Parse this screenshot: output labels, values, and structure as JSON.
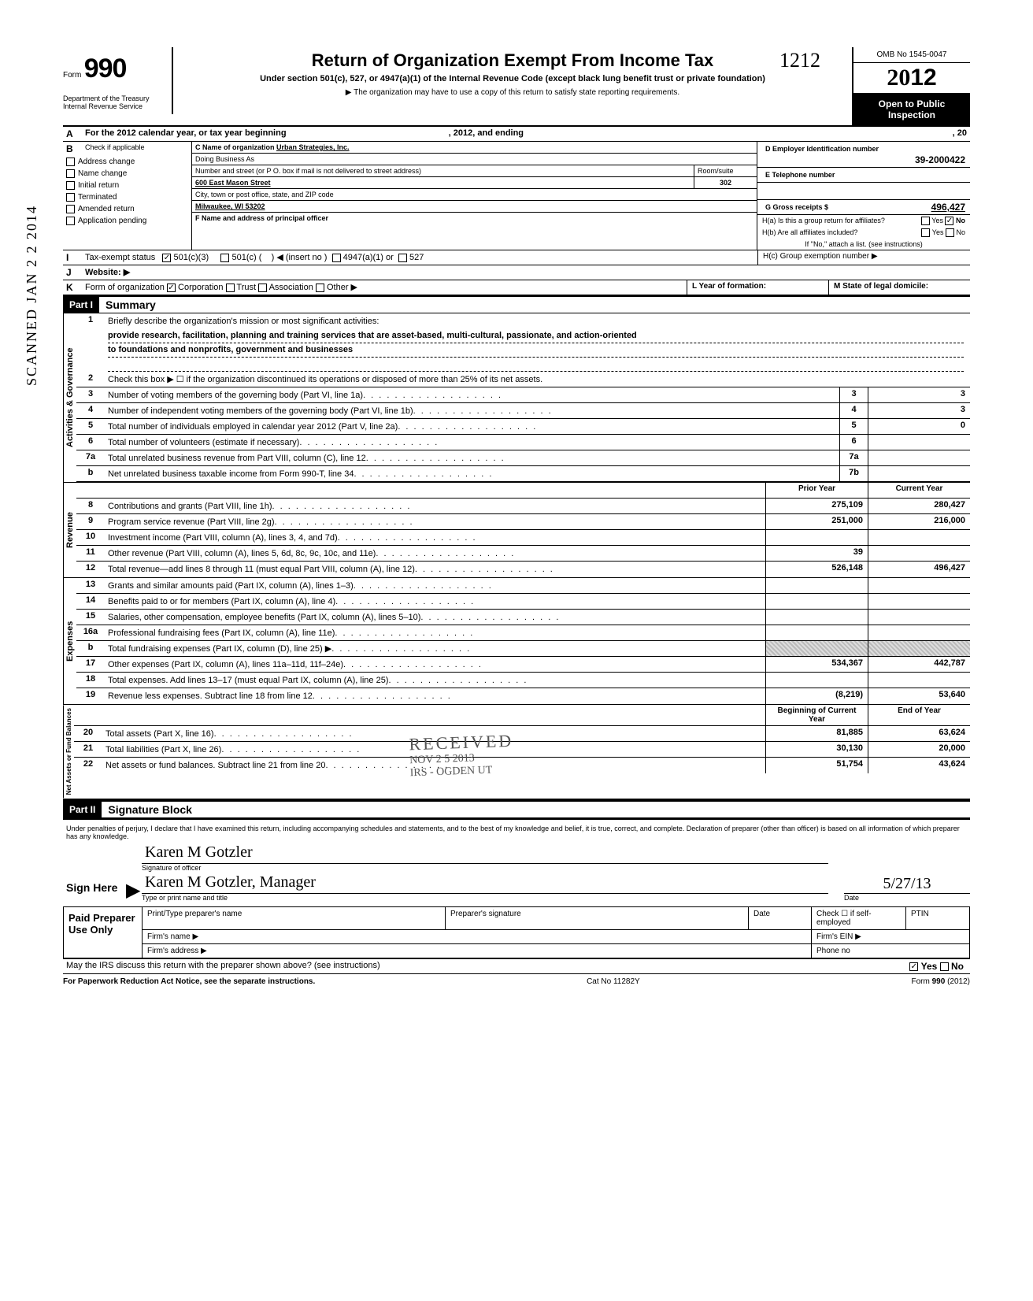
{
  "meta": {
    "form_number_prefix": "Form",
    "form_number": "990",
    "department": "Department of the Treasury",
    "irs": "Internal Revenue Service",
    "omb": "OMB No 1545-0047",
    "year_display": "2012",
    "open_public_1": "Open to Public",
    "open_public_2": "Inspection",
    "main_title": "Return of Organization Exempt From Income Tax",
    "sub_title": "Under section 501(c), 527, or 4947(a)(1) of the Internal Revenue Code (except black lung benefit trust or private foundation)",
    "arrow_note": "▶ The organization may have to use a copy of this return to satisfy state reporting requirements.",
    "scanned": "SCANNED JAN 2 2 2014",
    "hand_1212": "1212"
  },
  "lineA": {
    "label": "For the 2012 calendar year, or tax year beginning",
    "mid": ", 2012, and ending",
    "end": ", 20"
  },
  "lineB": {
    "label": "Check if applicable",
    "opts": [
      "Address change",
      "Name change",
      "Initial return",
      "Terminated",
      "Amended return",
      "Application pending"
    ]
  },
  "blockC": {
    "c_label": "C Name of organization",
    "org": "Urban Strategies, Inc.",
    "dba": "Doing Business As",
    "addr_label": "Number and street (or P O. box if mail is not delivered to street address)",
    "room_label": "Room/suite",
    "street": "600 East Mason Street",
    "room": "302",
    "city_label": "City, town or post office, state, and ZIP code",
    "city": "Milwaukee, WI  53202",
    "f_label": "F Name and address of principal officer"
  },
  "blockD": {
    "label": "D Employer Identification number",
    "value": "39-2000422"
  },
  "blockE": {
    "label": "E Telephone number"
  },
  "blockG": {
    "label": "G Gross receipts $",
    "value": "496,427"
  },
  "blockH": {
    "ha": "H(a) Is this a group return for affiliates?",
    "hb": "H(b) Are all affiliates included?",
    "hb_note": "If \"No,\" attach a list. (see instructions)",
    "hc": "H(c) Group exemption number ▶",
    "yes": "Yes",
    "no": "No"
  },
  "lineI": {
    "label": "Tax-exempt status",
    "opt1": "501(c)(3)",
    "opt2": "501(c) (",
    "opt2b": ") ◀ (insert no )",
    "opt3": "4947(a)(1) or",
    "opt4": "527"
  },
  "lineJ": {
    "label": "Website: ▶"
  },
  "lineK": {
    "label": "Form of organization",
    "opts": [
      "Corporation",
      "Trust",
      "Association",
      "Other ▶"
    ],
    "l_label": "L Year of formation:",
    "m_label": "M State of legal domicile:"
  },
  "part1": {
    "header": "Part I",
    "title": "Summary",
    "vert_ag": "Activities & Governance",
    "vert_rev": "Revenue",
    "vert_exp": "Expenses",
    "vert_net": "Net Assets or Fund Balances",
    "line1": "Briefly describe the organization's mission or most significant activities:",
    "mission1": "provide research, facilitation, planning and training services that are asset-based, multi-cultural, passionate, and action-oriented",
    "mission2": "to foundations and nonprofits, government and businesses",
    "line2": "Check this box ▶ ☐ if the organization discontinued its operations or disposed of more than 25% of its net assets.",
    "rows_ag": [
      {
        "n": "3",
        "d": "Number of voting members of the governing body (Part VI, line 1a)",
        "b": "3",
        "v": "3"
      },
      {
        "n": "4",
        "d": "Number of independent voting members of the governing body (Part VI, line 1b)",
        "b": "4",
        "v": "3"
      },
      {
        "n": "5",
        "d": "Total number of individuals employed in calendar year 2012 (Part V, line 2a)",
        "b": "5",
        "v": "0"
      },
      {
        "n": "6",
        "d": "Total number of volunteers (estimate if necessary)",
        "b": "6",
        "v": ""
      },
      {
        "n": "7a",
        "d": "Total unrelated business revenue from Part VIII, column (C), line 12",
        "b": "7a",
        "v": ""
      },
      {
        "n": "b",
        "d": "Net unrelated business taxable income from Form 990-T, line 34",
        "b": "7b",
        "v": ""
      }
    ],
    "col_py": "Prior Year",
    "col_cy": "Current Year",
    "rows_rev": [
      {
        "n": "8",
        "d": "Contributions and grants (Part VIII, line 1h)",
        "py": "275,109",
        "cy": "280,427"
      },
      {
        "n": "9",
        "d": "Program service revenue (Part VIII, line 2g)",
        "py": "251,000",
        "cy": "216,000"
      },
      {
        "n": "10",
        "d": "Investment income (Part VIII, column (A), lines 3, 4, and 7d)",
        "py": "",
        "cy": ""
      },
      {
        "n": "11",
        "d": "Other revenue (Part VIII, column (A), lines 5, 6d, 8c, 9c, 10c, and 11e)",
        "py": "39",
        "cy": ""
      },
      {
        "n": "12",
        "d": "Total revenue—add lines 8 through 11 (must equal Part VIII, column (A), line 12)",
        "py": "526,148",
        "cy": "496,427"
      }
    ],
    "rows_exp": [
      {
        "n": "13",
        "d": "Grants and similar amounts paid (Part IX, column (A), lines 1–3)",
        "py": "",
        "cy": ""
      },
      {
        "n": "14",
        "d": "Benefits paid to or for members (Part IX, column (A), line 4)",
        "py": "",
        "cy": ""
      },
      {
        "n": "15",
        "d": "Salaries, other compensation, employee benefits (Part IX, column (A), lines 5–10)",
        "py": "",
        "cy": ""
      },
      {
        "n": "16a",
        "d": "Professional fundraising fees (Part IX, column (A), line 11e)",
        "py": "",
        "cy": ""
      },
      {
        "n": "b",
        "d": "Total fundraising expenses (Part IX, column (D), line 25) ▶",
        "py": "shaded",
        "cy": "shaded"
      },
      {
        "n": "17",
        "d": "Other expenses (Part IX, column (A), lines 11a–11d, 11f–24e)",
        "py": "534,367",
        "cy": "442,787"
      },
      {
        "n": "18",
        "d": "Total expenses. Add lines 13–17 (must equal Part IX, column (A), line 25)",
        "py": "",
        "cy": ""
      },
      {
        "n": "19",
        "d": "Revenue less expenses. Subtract line 18 from line 12",
        "py": "(8,219)",
        "cy": "53,640"
      }
    ],
    "col_boy": "Beginning of Current Year",
    "col_eoy": "End of Year",
    "rows_net": [
      {
        "n": "20",
        "d": "Total assets (Part X, line 16)",
        "py": "81,885",
        "cy": "63,624"
      },
      {
        "n": "21",
        "d": "Total liabilities (Part X, line 26)",
        "py": "30,130",
        "cy": "20,000"
      },
      {
        "n": "22",
        "d": "Net assets or fund balances. Subtract line 21 from line 20",
        "py": "51,754",
        "cy": "43,624"
      }
    ]
  },
  "part2": {
    "header": "Part II",
    "title": "Signature Block",
    "penalty": "Under penalties of perjury, I declare that I have examined this return, including accompanying schedules and statements, and to the best of my knowledge and belief, it is true, correct, and complete. Declaration of preparer (other than officer) is based on all information of which preparer has any knowledge.",
    "sign_here": "Sign Here",
    "sig_officer": "Signature of officer",
    "date_label": "Date",
    "date_val": "5/27/13",
    "typed_name": "Karen M Gotzler, Manager",
    "typed_label": "Type or print name and title",
    "sig_script": "Karen M Gotzler"
  },
  "paid": {
    "label": "Paid Preparer Use Only",
    "r1": [
      "Print/Type preparer's name",
      "Preparer's signature",
      "Date",
      "Check ☐ if self-employed",
      "PTIN"
    ],
    "firm_name": "Firm's name  ▶",
    "firm_ein": "Firm's EIN ▶",
    "firm_addr": "Firm's address ▶",
    "phone": "Phone no"
  },
  "footer": {
    "discuss": "May the IRS discuss this return with the preparer shown above? (see instructions)",
    "yes": "Yes",
    "no": "No",
    "pra": "For Paperwork Reduction Act Notice, see the separate instructions.",
    "cat": "Cat No 11282Y",
    "form": "Form 990 (2012)"
  },
  "stamp": {
    "l1": "RECEIVED",
    "l2": "NOV 2 5 2013",
    "l3": "IRS - OGDEN UT"
  }
}
